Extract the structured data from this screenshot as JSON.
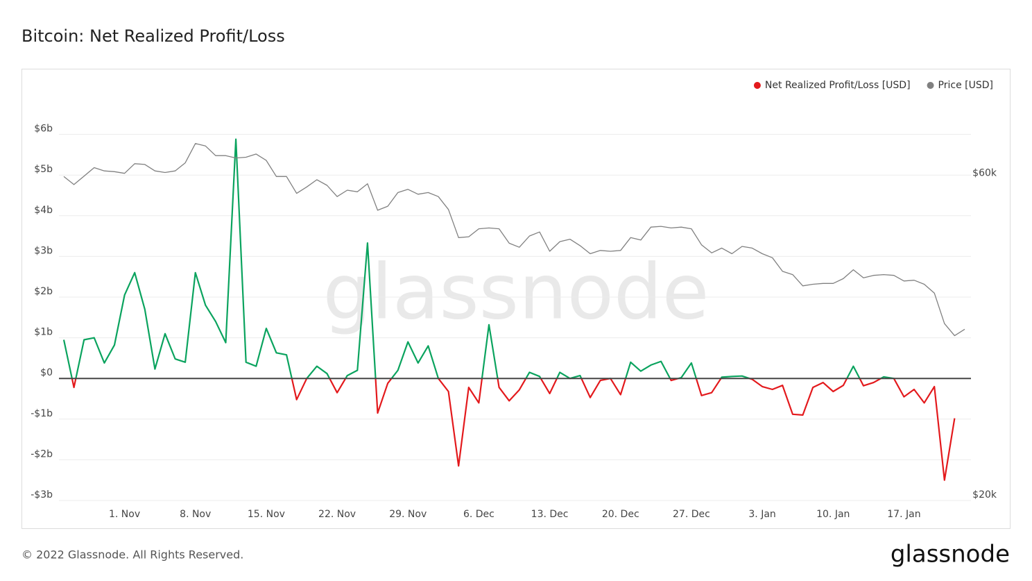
{
  "chart_data": {
    "type": "line",
    "title": "Bitcoin: Net Realized Profit/Loss",
    "watermark": "glassnode",
    "footer": "© 2022 Glassnode. All Rights Reserved.",
    "logo": "glassnode",
    "legend": "top-right",
    "grid": true,
    "categories": [
      null,
      null,
      null,
      null,
      null,
      null,
      "1. Nov",
      null,
      null,
      null,
      null,
      null,
      null,
      "8. Nov",
      null,
      null,
      null,
      null,
      null,
      null,
      "15. Nov",
      null,
      null,
      null,
      null,
      null,
      null,
      "22. Nov",
      null,
      null,
      null,
      null,
      null,
      null,
      "29. Nov",
      null,
      null,
      null,
      null,
      null,
      null,
      "6. Dec",
      null,
      null,
      null,
      null,
      null,
      null,
      "13. Dec",
      null,
      null,
      null,
      null,
      null,
      null,
      "20. Dec",
      null,
      null,
      null,
      null,
      null,
      null,
      "27. Dec",
      null,
      null,
      null,
      null,
      null,
      null,
      "3. Jan",
      null,
      null,
      null,
      null,
      null,
      null,
      "10. Jan",
      null,
      null,
      null,
      null,
      null,
      null,
      "17. Jan",
      null,
      null,
      null,
      null,
      null,
      null
    ],
    "ylim": [
      -3,
      7
    ],
    "yticks": [
      {
        "value": -3,
        "label": "-$3b"
      },
      {
        "value": -2,
        "label": "-$2b"
      },
      {
        "value": -1,
        "label": "-$1b"
      },
      {
        "value": 0,
        "label": "$0"
      },
      {
        "value": 1,
        "label": "$1b"
      },
      {
        "value": 2,
        "label": "$2b"
      },
      {
        "value": 3,
        "label": "$3b"
      },
      {
        "value": 4,
        "label": "$4b"
      },
      {
        "value": 5,
        "label": "$5b"
      },
      {
        "value": 6,
        "label": "$6b"
      }
    ],
    "y2lim": [
      19300,
      69900
    ],
    "y2ticks": [
      {
        "value": 20000,
        "label": "$20k"
      },
      {
        "value": 60000,
        "label": "$60k"
      }
    ],
    "series": [
      {
        "name": "Net Realized Profit/Loss [USD]",
        "color": "#e3191c",
        "positive_color": "#0aa35e",
        "values": [
          0.95,
          -0.22,
          0.95,
          1.0,
          0.38,
          0.82,
          2.05,
          2.6,
          1.7,
          0.23,
          1.1,
          0.48,
          0.4,
          2.6,
          1.8,
          1.4,
          0.88,
          5.88,
          0.4,
          0.3,
          1.23,
          0.63,
          0.58,
          -0.52,
          0,
          0.3,
          0.12,
          -0.35,
          0.07,
          0.2,
          3.33,
          -0.85,
          -0.12,
          0.2,
          0.9,
          0.38,
          0.8,
          0,
          -0.32,
          -2.15,
          -0.22,
          -0.6,
          1.32,
          -0.22,
          -0.55,
          -0.28,
          0.15,
          0.05,
          -0.37,
          0.15,
          0,
          0.07,
          -0.47,
          -0.05,
          0,
          -0.4,
          0.4,
          0.18,
          0.33,
          0.42,
          -0.05,
          0.02,
          0.38,
          -0.42,
          -0.35,
          0.03,
          0.05,
          0.06,
          -0.02,
          -0.2,
          -0.27,
          -0.17,
          -0.88,
          -0.9,
          -0.22,
          -0.1,
          -0.32,
          -0.17,
          0.3,
          -0.18,
          -0.1,
          0.04,
          0,
          -0.45,
          -0.27,
          -0.6,
          -0.2,
          -2.5,
          -0.98,
          null
        ]
      },
      {
        "name": "Price [USD]",
        "color": "#808080",
        "axis": "y2",
        "values": [
          59600,
          58600,
          59650,
          60700,
          60300,
          60200,
          60000,
          61200,
          61100,
          60300,
          60100,
          60300,
          61300,
          63700,
          63400,
          62200,
          62200,
          61900,
          62000,
          62400,
          61600,
          59600,
          59600,
          57500,
          58300,
          59200,
          58500,
          57100,
          57900,
          57700,
          58700,
          55400,
          55900,
          57600,
          58000,
          57400,
          57600,
          57100,
          55500,
          52000,
          52100,
          53100,
          53200,
          53100,
          51300,
          50800,
          52200,
          52700,
          50300,
          51500,
          51800,
          51000,
          50000,
          50400,
          50300,
          50400,
          52000,
          51700,
          53300,
          53400,
          53200,
          53300,
          53100,
          51100,
          50100,
          50700,
          50000,
          50900,
          50700,
          50000,
          49500,
          47800,
          47400,
          46000,
          46200,
          46300,
          46300,
          46900,
          48000,
          47000,
          47300,
          47400,
          47300,
          46600,
          46700,
          46200,
          45100,
          41300,
          39800,
          40600
        ]
      }
    ]
  }
}
